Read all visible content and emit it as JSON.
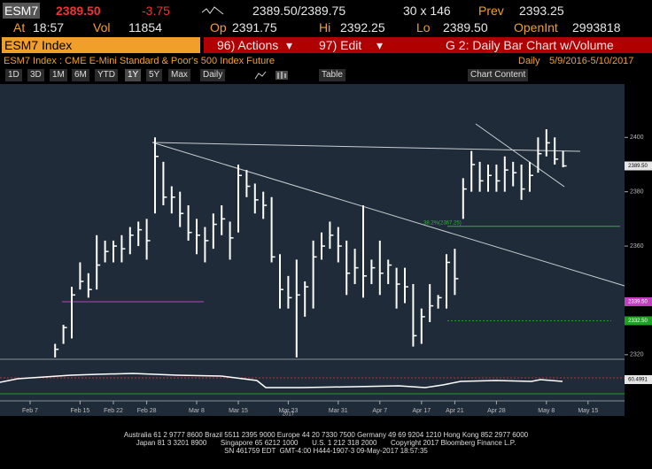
{
  "quote": {
    "ticker": "ESM7",
    "last": "2389.50",
    "change": "-3.75",
    "bid_ask": "2389.50/2389.75",
    "size": "30 x 146",
    "prev_label": "Prev",
    "prev": "2393.25",
    "at_label": "At",
    "time": "18:57",
    "vol_label": "Vol",
    "vol": "11854",
    "op_label": "Op",
    "op": "2391.75",
    "hi_label": "Hi",
    "hi": "2392.25",
    "lo_label": "Lo",
    "lo": "2389.50",
    "oi_label": "OpenInt",
    "oi": "2993818"
  },
  "menu": {
    "security": "ESM7 Index",
    "actions": "96) Actions",
    "edit": "97) Edit",
    "chart_name": "G 2: Daily Bar Chart w/Volume"
  },
  "subheader": {
    "description": "ESM7 Index : CME E-Mini Standard & Poor's 500 Index Future",
    "frequency": "Daily",
    "range": "5/9/2016-5/10/2017"
  },
  "toolbar": {
    "periods": [
      "1D",
      "3D",
      "1M",
      "6M",
      "YTD",
      "1Y",
      "5Y",
      "Max"
    ],
    "interval": "Daily",
    "table": "Table",
    "chart_content": "Chart Content"
  },
  "chart_data": {
    "type": "hlc",
    "categories": [
      "Feb 7",
      null,
      null,
      null,
      null,
      null,
      "Feb 15",
      null,
      null,
      null,
      "Feb 22",
      null,
      null,
      null,
      "Feb 28",
      null,
      null,
      null,
      null,
      null,
      "Mar 8",
      null,
      null,
      null,
      null,
      "Mar 15",
      null,
      null,
      null,
      null,
      null,
      "Mar 23",
      null,
      null,
      null,
      null,
      null,
      "Mar 31",
      null,
      null,
      null,
      null,
      "Apr 7",
      null,
      null,
      null,
      null,
      "Apr 17",
      null,
      null,
      null,
      "Apr 21",
      null,
      null,
      null,
      null,
      "Apr 28",
      null,
      null,
      null,
      null,
      null,
      "May 8",
      null,
      null,
      null,
      null,
      "May 15"
    ],
    "year_label": "2017",
    "low": [
      null,
      null,
      null,
      2319,
      2324,
      2326,
      2344,
      2341,
      2344,
      2354,
      2354,
      2354,
      2357,
      2360,
      2355,
      2372,
      2375,
      2372,
      2367,
      2362,
      2357,
      2354,
      2359,
      2364,
      2355,
      2365,
      2378,
      2372,
      2370,
      2354,
      2337,
      2337,
      2319,
      2334,
      2337,
      2355,
      2359,
      2354,
      2342,
      2346,
      2341,
      2346,
      2342,
      2346,
      2337,
      2339,
      2323,
      2324,
      2332,
      2337,
      2337,
      2342,
      2370,
      2380,
      2380,
      2380,
      2380,
      2380,
      2382,
      2377,
      2380,
      2387,
      2393,
      2390,
      2389,
      null,
      null,
      null
    ],
    "high": [
      null,
      null,
      null,
      2324,
      2331,
      2345,
      2354,
      2350,
      2364,
      2362,
      2362,
      2364,
      2367,
      2369,
      2370,
      2400,
      2391,
      2382,
      2380,
      2375,
      2370,
      2367,
      2372,
      2375,
      2369,
      2390,
      2388,
      2383,
      2380,
      2378,
      2357,
      2349,
      2355,
      2347,
      2362,
      2365,
      2369,
      2367,
      2362,
      2359,
      2375,
      2355,
      2362,
      2355,
      2352,
      2352,
      2346,
      2337,
      2346,
      2342,
      2357,
      2359,
      2385,
      2395,
      2391,
      2390,
      2390,
      2393,
      2391,
      2390,
      2391,
      2400,
      2403,
      2400,
      2395,
      null,
      null,
      null
    ],
    "close": [
      null,
      null,
      null,
      2322,
      2330,
      2342,
      2347,
      2344,
      2353,
      2358,
      2360,
      2359,
      2364,
      2366,
      2362,
      2393,
      2378,
      2378,
      2372,
      2365,
      2364,
      2362,
      2368,
      2370,
      2363,
      2386,
      2382,
      2377,
      2375,
      2356,
      2344,
      2341,
      2342,
      2345,
      2356,
      2360,
      2364,
      2360,
      2350,
      2352,
      2349,
      2352,
      2350,
      2353,
      2346,
      2345,
      2327,
      2334,
      2338,
      2341,
      2354,
      2348,
      2381,
      2390,
      2384,
      2386,
      2384,
      2388,
      2387,
      2381,
      2386,
      2394,
      2398,
      2392,
      2389.5,
      null,
      null,
      null
    ],
    "color": "#ffffff",
    "ylim": [
      2318,
      2418
    ],
    "yticks": [
      2320,
      2360,
      2380,
      2400
    ],
    "price_tags": [
      {
        "value": 2389.5,
        "label": "2389.50",
        "color": "#e6e6e6"
      },
      {
        "value": 2339.5,
        "label": "2339.50",
        "color": "#c040c0"
      },
      {
        "value": 2332.5,
        "label": "2332.50",
        "color": "#20a020"
      }
    ],
    "level_label": {
      "value": 2367.25,
      "label": "38.2%(2367.25)"
    },
    "oscillator_label": "60.4991"
  },
  "footer": {
    "lines": [
      "Australia 61 2 9777 8600 Brazil 5511 2395 9000 Europe 44 20 7330 7500 Germany 49 69 9204 1210 Hong Kong 852 2977 6000",
      "Japan 81 3 3201 8900       Singapore 65 6212 1000       U.S. 1 212 318 2000       Copyright 2017 Bloomberg Finance L.P.",
      "SN 461759 EDT  GMT-4:00 H444-1907-3 09-May-2017 18:57:35"
    ]
  }
}
